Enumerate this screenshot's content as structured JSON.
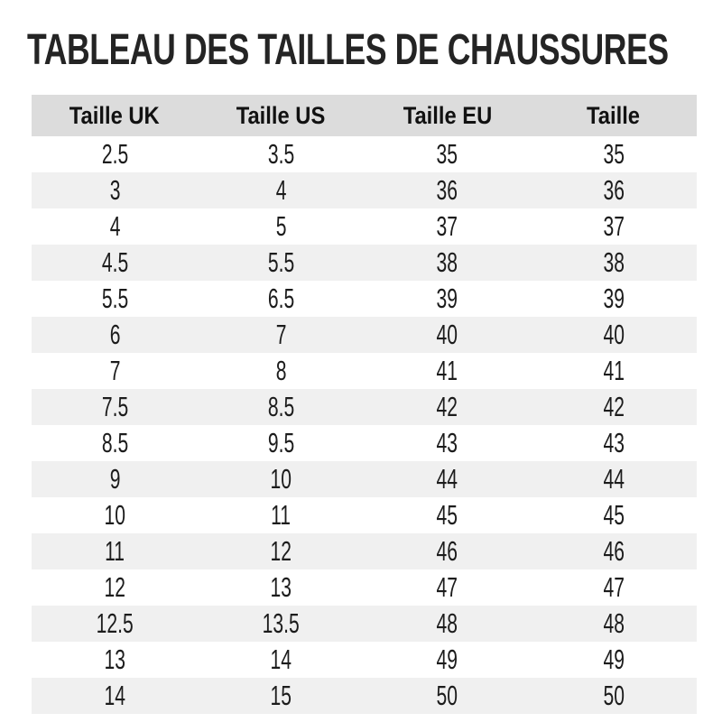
{
  "title": "TABLEAU DES TAILLES DE CHAUSSURES",
  "chart_data": {
    "type": "table",
    "title": "TABLEAU DES TAILLES DE CHAUSSURES",
    "columns": [
      "Taille UK",
      "Taille US",
      "Taille EU",
      "Taille"
    ],
    "rows": [
      [
        "2.5",
        "3.5",
        "35",
        "35"
      ],
      [
        "3",
        "4",
        "36",
        "36"
      ],
      [
        "4",
        "5",
        "37",
        "37"
      ],
      [
        "4.5",
        "5.5",
        "38",
        "38"
      ],
      [
        "5.5",
        "6.5",
        "39",
        "39"
      ],
      [
        "6",
        "7",
        "40",
        "40"
      ],
      [
        "7",
        "8",
        "41",
        "41"
      ],
      [
        "7.5",
        "8.5",
        "42",
        "42"
      ],
      [
        "8.5",
        "9.5",
        "43",
        "43"
      ],
      [
        "9",
        "10",
        "44",
        "44"
      ],
      [
        "10",
        "11",
        "45",
        "45"
      ],
      [
        "11",
        "12",
        "46",
        "46"
      ],
      [
        "12",
        "13",
        "47",
        "47"
      ],
      [
        "12.5",
        "13.5",
        "48",
        "48"
      ],
      [
        "13",
        "14",
        "49",
        "49"
      ],
      [
        "14",
        "15",
        "50",
        "50"
      ]
    ],
    "layout": {
      "stripes": "alternating, first data row white, second light gray",
      "grid": "off",
      "column_alignment": "center"
    }
  },
  "colors": {
    "header_bg": "#dcdcdc",
    "stripe_bg": "#f0f0f0",
    "row_bg": "#ffffff",
    "text": "#1c1c1c",
    "title": "#242424",
    "page_bg": "#ffffff"
  }
}
